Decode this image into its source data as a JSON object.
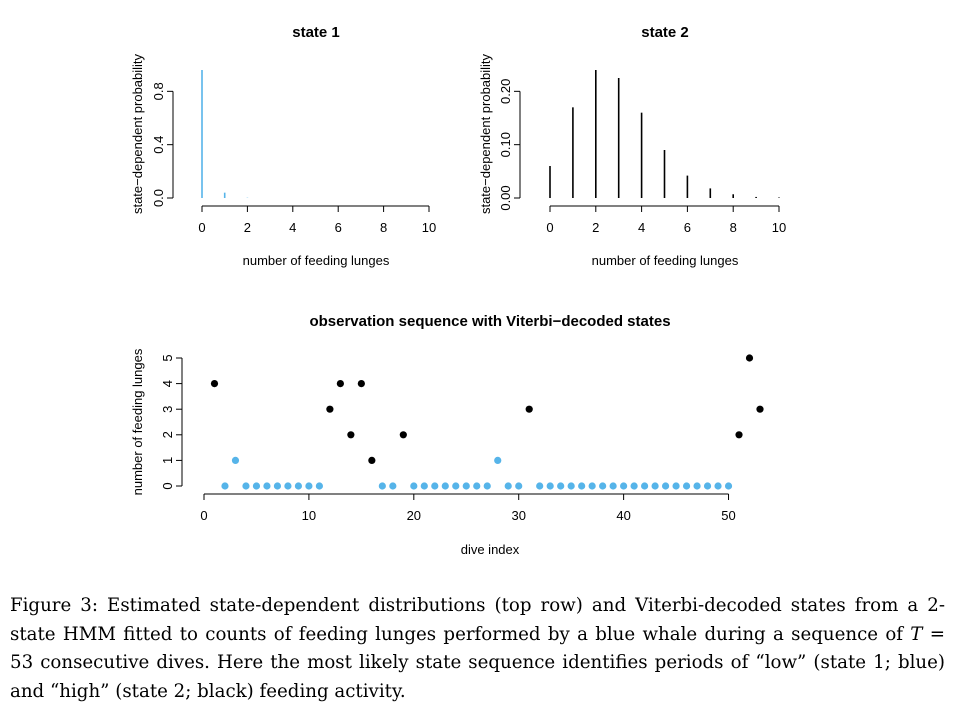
{
  "colors": {
    "state1": "#56B4E9",
    "state2": "#000000"
  },
  "chart_data": [
    {
      "type": "bar",
      "title": "state 1",
      "xlabel": "number of feeding lunges",
      "ylabel": "state−dependent probability",
      "x": [
        0,
        1,
        2,
        3,
        4,
        5,
        6,
        7,
        8,
        9,
        10
      ],
      "values": [
        0.96,
        0.04,
        0.002,
        0.0,
        0.0,
        0.0,
        0.0,
        0.0,
        0.0,
        0.0,
        0.0
      ],
      "xlim": [
        0,
        10
      ],
      "ylim": [
        0,
        0.96
      ],
      "xticks": [
        "0",
        "2",
        "4",
        "6",
        "8",
        "10"
      ],
      "yticks": [
        "0.0",
        "0.4",
        "0.8"
      ],
      "color": "#56B4E9"
    },
    {
      "type": "bar",
      "title": "state 2",
      "xlabel": "number of feeding lunges",
      "ylabel": "state−dependent probability",
      "x": [
        0,
        1,
        2,
        3,
        4,
        5,
        6,
        7,
        8,
        9,
        10
      ],
      "values": [
        0.06,
        0.17,
        0.24,
        0.225,
        0.16,
        0.09,
        0.042,
        0.018,
        0.007,
        0.002,
        0.001
      ],
      "xlim": [
        0,
        10
      ],
      "ylim": [
        0,
        0.24
      ],
      "xticks": [
        "0",
        "2",
        "4",
        "6",
        "8",
        "10"
      ],
      "yticks": [
        "0.00",
        "0.10",
        "0.20"
      ],
      "color": "#000000"
    },
    {
      "type": "scatter",
      "title": "observation sequence with Viterbi−decoded states",
      "xlabel": "dive index",
      "ylabel": "number of feeding lunges",
      "xlim": [
        0,
        53
      ],
      "ylim": [
        0,
        5
      ],
      "xticks": [
        "0",
        "10",
        "20",
        "30",
        "40",
        "50"
      ],
      "yticks": [
        "0",
        "1",
        "2",
        "3",
        "4",
        "5"
      ],
      "x": [
        1,
        2,
        3,
        4,
        5,
        6,
        7,
        8,
        9,
        10,
        11,
        12,
        13,
        14,
        15,
        16,
        17,
        18,
        19,
        20,
        21,
        22,
        23,
        24,
        25,
        26,
        27,
        28,
        29,
        30,
        31,
        32,
        33,
        34,
        35,
        36,
        37,
        38,
        39,
        40,
        41,
        42,
        43,
        44,
        45,
        46,
        47,
        48,
        49,
        50,
        51,
        52,
        53
      ],
      "y": [
        4,
        0,
        1,
        0,
        0,
        0,
        0,
        0,
        0,
        0,
        0,
        3,
        4,
        2,
        4,
        1,
        0,
        0,
        2,
        0,
        0,
        0,
        0,
        0,
        0,
        0,
        0,
        1,
        0,
        0,
        3,
        0,
        0,
        0,
        0,
        0,
        0,
        0,
        0,
        0,
        0,
        0,
        0,
        0,
        0,
        0,
        0,
        0,
        0,
        0,
        2,
        5,
        3
      ],
      "state": [
        2,
        1,
        1,
        1,
        1,
        1,
        1,
        1,
        1,
        1,
        1,
        2,
        2,
        2,
        2,
        2,
        1,
        1,
        2,
        1,
        1,
        1,
        1,
        1,
        1,
        1,
        1,
        1,
        1,
        1,
        2,
        1,
        1,
        1,
        1,
        1,
        1,
        1,
        1,
        1,
        1,
        1,
        1,
        1,
        1,
        1,
        1,
        1,
        1,
        1,
        2,
        2,
        2
      ]
    }
  ],
  "caption": {
    "p1": "Figure 3: Estimated state-dependent distributions (top row) and Viterbi-decoded states from a 2-state HMM fitted to counts of feeding lunges performed by a blue whale during a sequence of ",
    "T": "T",
    "p2": " = 53 consecutive dives. Here the most likely state sequence identifies periods of “low” (state 1; blue) and “high” (state 2; black) feeding activity."
  }
}
